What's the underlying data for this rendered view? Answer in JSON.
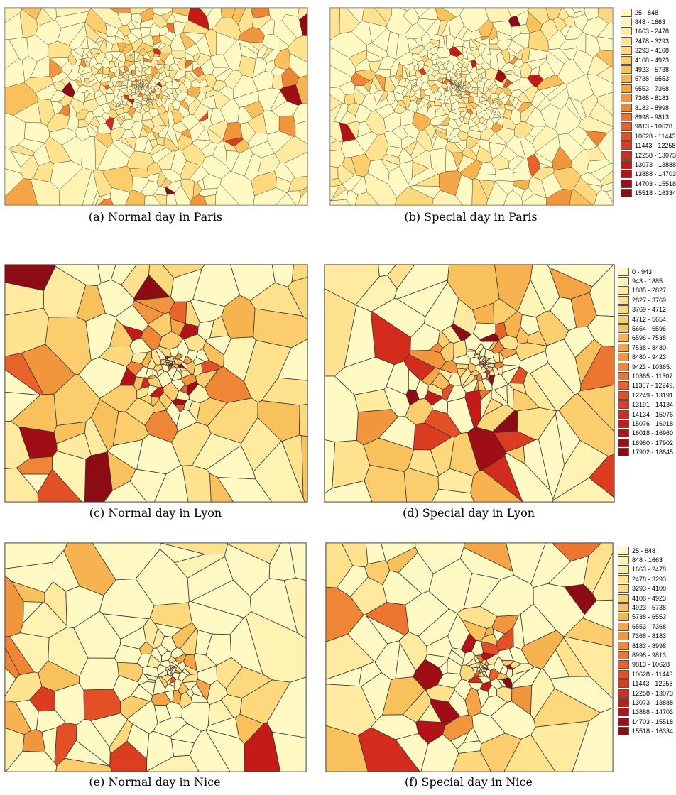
{
  "panels": [
    {
      "id": "a",
      "caption": "(a) Normal day in Paris"
    },
    {
      "id": "b",
      "caption": "(b) Special day in Paris"
    },
    {
      "id": "c",
      "caption": "(c) Normal day in Lyon"
    },
    {
      "id": "d",
      "caption": "(d) Special day in Lyon"
    },
    {
      "id": "e",
      "caption": "(e) Normal day in Nice"
    },
    {
      "id": "f",
      "caption": "(f) Special day in Nice"
    }
  ],
  "legend_paris_nice": [
    "25 - 848",
    "848 - 1663",
    "1663 - 2478",
    "2478 - 3293",
    "3293 - 4108",
    "4108 - 4923",
    "4923 - 5738",
    "5738 - 6553",
    "6553 - 7368",
    "7368 - 8183",
    "8183 - 8998",
    "8998 - 9813",
    "9813 - 10628",
    "10628 - 11443",
    "11443 - 12258",
    "12258 - 13073",
    "13073 - 13888",
    "13888 - 14703",
    "14703 - 15518",
    "15518 - 16334"
  ],
  "legend_lyon": [
    "0 - 943",
    "943 - 1885",
    "1885 - 2827.",
    "2827.- 3769.",
    "3769 - 4712",
    "4712 - 5654",
    "5654 - 6596",
    "6596 - 7538",
    "7538 - 8480",
    "8480 - 9423",
    "9423 - 10365.",
    "10365 - 11307",
    "11307.- 12249.",
    "12249 - 13191",
    "13191 - 14134",
    "14134 - 15076",
    "15076 - 16018",
    "16018 - 16960",
    "16960 - 17902",
    "17902 - 18845"
  ],
  "colors": {
    "scale": [
      "#fff9c4",
      "#fff3b3",
      "#ffeaa0",
      "#fee28e",
      "#fdd87c",
      "#fbcd6c",
      "#f9c15c",
      "#f7b34f",
      "#f5a545",
      "#f2963d",
      "#ef8636",
      "#ec7530",
      "#e8632a",
      "#e35025",
      "#dc3d20",
      "#d32b1c",
      "#c51b18",
      "#b31316",
      "#a00e15",
      "#8c0b14"
    ],
    "border": "#3a3a3a",
    "frame": "#c8c8c8"
  }
}
